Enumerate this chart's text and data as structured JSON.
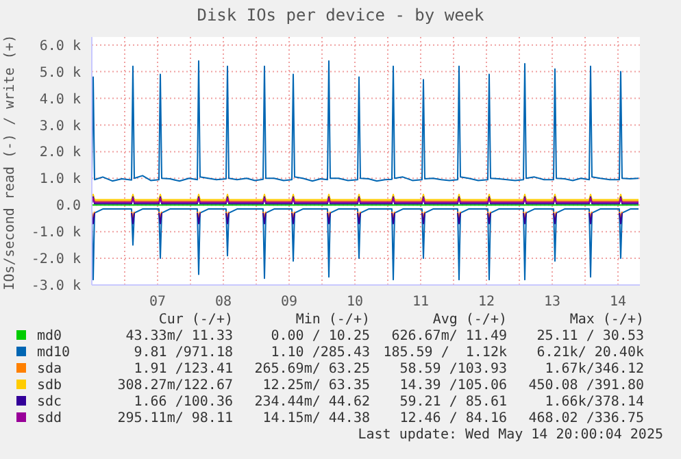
{
  "chart_data": {
    "type": "line",
    "title": "Disk IOs per device - by week",
    "ylabel": "IOs/second read (-) / write (+)",
    "x": [
      "2025-05-06T12:00",
      "2025-05-06T12:30",
      "2025-05-06T13:00",
      "2025-05-06T16:00",
      "2025-05-06T19:30",
      "2025-05-06T23:00",
      "2025-05-07T02:30",
      "2025-05-07T03:00",
      "2025-05-07T03:30",
      "2025-05-07T06:30",
      "2025-05-07T09:30",
      "2025-05-07T12:30",
      "2025-05-07T13:00",
      "2025-05-07T13:30",
      "2025-05-07T16:30",
      "2025-05-07T20:00",
      "2025-05-07T23:30",
      "2025-05-08T02:30",
      "2025-05-08T03:00",
      "2025-05-08T03:30",
      "2025-05-08T06:30",
      "2025-05-08T09:30",
      "2025-05-08T13:00",
      "2025-05-08T13:30",
      "2025-05-08T14:00",
      "2025-05-08T17:00",
      "2025-05-08T20:30",
      "2025-05-08T23:30",
      "2025-05-09T02:30",
      "2025-05-09T03:00",
      "2025-05-09T03:30",
      "2025-05-09T06:30",
      "2025-05-09T10:00",
      "2025-05-09T13:00",
      "2025-05-09T13:30",
      "2025-05-09T14:00",
      "2025-05-09T17:00",
      "2025-05-09T20:30",
      "2025-05-09T23:30",
      "2025-05-10T02:00",
      "2025-05-10T02:30",
      "2025-05-10T03:00",
      "2025-05-10T06:00",
      "2025-05-10T09:30",
      "2025-05-10T13:00",
      "2025-05-10T13:30",
      "2025-05-10T14:00",
      "2025-05-10T17:00",
      "2025-05-10T20:00",
      "2025-05-10T23:00",
      "2025-05-11T01:30",
      "2025-05-11T02:00",
      "2025-05-11T02:30",
      "2025-05-11T05:30",
      "2025-05-11T09:00",
      "2025-05-11T12:30",
      "2025-05-11T13:00",
      "2025-05-11T13:30",
      "2025-05-11T16:30",
      "2025-05-11T19:30",
      "2025-05-11T22:30",
      "2025-05-12T01:30",
      "2025-05-12T02:00",
      "2025-05-12T02:30",
      "2025-05-12T05:30",
      "2025-05-12T09:00",
      "2025-05-12T12:30",
      "2025-05-12T13:00",
      "2025-05-12T13:30",
      "2025-05-12T16:30",
      "2025-05-12T19:30",
      "2025-05-12T22:30",
      "2025-05-13T01:30",
      "2025-05-13T02:00",
      "2025-05-13T02:30",
      "2025-05-13T05:30",
      "2025-05-13T09:00",
      "2025-05-13T12:30",
      "2025-05-13T13:00",
      "2025-05-13T13:30",
      "2025-05-13T16:30",
      "2025-05-13T19:30",
      "2025-05-13T22:30",
      "2025-05-14T01:30",
      "2025-05-14T02:00",
      "2025-05-14T02:30",
      "2025-05-14T05:30",
      "2025-05-14T09:00",
      "2025-05-14T12:30",
      "2025-05-14T13:00",
      "2025-05-14T13:30",
      "2025-05-14T16:30",
      "2025-05-14T19:30"
    ],
    "series": [
      {
        "name": "md0",
        "color": "#00cc00",
        "values": [
          0,
          0,
          0,
          0,
          0,
          0,
          0,
          0,
          0,
          0,
          0,
          0,
          0,
          0,
          0,
          0,
          0,
          0,
          0,
          0,
          0,
          0,
          0,
          0,
          0,
          0,
          0,
          0,
          0,
          0,
          0,
          0,
          0,
          0,
          0,
          0,
          0,
          0,
          0,
          0,
          0,
          0,
          0,
          0,
          0,
          0,
          0,
          0,
          0,
          0,
          0,
          0,
          0,
          0,
          0,
          0,
          0,
          0,
          0,
          0,
          0,
          0,
          0,
          0,
          0,
          0,
          0,
          0,
          0,
          0,
          0,
          0,
          0,
          0,
          0,
          0,
          0,
          0,
          0,
          0,
          0,
          0,
          0,
          0,
          0,
          0,
          0,
          0,
          0,
          0,
          0,
          0,
          0
        ]
      },
      {
        "name": "md10",
        "color": "#0066b3",
        "values": [
          920,
          4800,
          950,
          1050,
          900,
          980,
          940,
          5200,
          1000,
          1100,
          920,
          950,
          4900,
          1000,
          980,
          900,
          1000,
          950,
          5400,
          1050,
          1000,
          950,
          980,
          5200,
          1000,
          950,
          1000,
          920,
          960,
          5200,
          1000,
          1000,
          920,
          950,
          4900,
          1050,
          1000,
          900,
          980,
          950,
          5400,
          1000,
          1000,
          920,
          950,
          4800,
          1000,
          980,
          900,
          950,
          960,
          5200,
          1000,
          1050,
          920,
          950,
          4700,
          980,
          1000,
          950,
          920,
          950,
          5200,
          1050,
          1000,
          920,
          950,
          4900,
          1000,
          980,
          950,
          920,
          950,
          5300,
          1000,
          1050,
          950,
          950,
          5100,
          1000,
          980,
          920,
          1000,
          950,
          5200,
          1050,
          1000,
          950,
          950,
          5000,
          1000,
          980,
          1000
        ]
      },
      {
        "color": "#0066b3",
        "values": [
          -150,
          -2800,
          -300,
          -150,
          -150,
          -150,
          -150,
          -1500,
          -300,
          -150,
          -150,
          -150,
          -2000,
          -300,
          -150,
          -150,
          -150,
          -150,
          -2600,
          -300,
          -150,
          -150,
          -150,
          -1900,
          -300,
          -150,
          -150,
          -150,
          -150,
          -2750,
          -300,
          -150,
          -150,
          -150,
          -2100,
          -300,
          -150,
          -150,
          -150,
          -150,
          -2700,
          -300,
          -150,
          -150,
          -150,
          -2000,
          -300,
          -150,
          -150,
          -150,
          -150,
          -2800,
          -300,
          -150,
          -150,
          -150,
          -2000,
          -300,
          -150,
          -150,
          -150,
          -150,
          -2800,
          -300,
          -150,
          -150,
          -150,
          -2800,
          -300,
          -150,
          -150,
          -150,
          -150,
          -2800,
          -300,
          -150,
          -150,
          -150,
          -2100,
          -300,
          -150,
          -150,
          -150,
          -150,
          -2700,
          -300,
          -150,
          -150,
          -150,
          -2000,
          -300,
          -150,
          -150
        ]
      },
      {
        "name": "sda",
        "color": "#ff8000",
        "values": [
          150,
          350,
          150,
          150,
          150,
          150,
          150,
          350,
          150,
          150,
          150,
          150,
          350,
          150,
          150,
          150,
          150,
          150,
          350,
          150,
          150,
          150,
          150,
          350,
          150,
          150,
          150,
          150,
          150,
          350,
          150,
          150,
          150,
          150,
          350,
          150,
          150,
          150,
          150,
          150,
          350,
          150,
          150,
          150,
          150,
          350,
          150,
          150,
          150,
          150,
          150,
          350,
          150,
          150,
          150,
          150,
          350,
          150,
          150,
          150,
          150,
          150,
          350,
          150,
          150,
          150,
          150,
          350,
          150,
          150,
          150,
          150,
          150,
          350,
          150,
          150,
          150,
          150,
          350,
          150,
          150,
          150,
          150,
          150,
          350,
          150,
          150,
          150,
          150,
          350,
          150,
          150,
          150
        ]
      },
      {
        "color": "#ff8000",
        "values": [
          -250,
          -500,
          -250,
          null,
          null,
          null,
          -250,
          -500,
          -250,
          null,
          null,
          -250,
          -500,
          -250,
          null,
          null,
          null,
          -250,
          -500,
          -250,
          null,
          null,
          -250,
          -500,
          -250,
          null,
          null,
          null,
          -250,
          -500,
          -250,
          null,
          null,
          -250,
          -500,
          -250,
          null,
          null,
          null,
          -250,
          -500,
          -250,
          null,
          null,
          -250,
          -500,
          -250,
          null,
          null,
          null,
          -250,
          -500,
          -250,
          null,
          null,
          -250,
          -500,
          -250,
          null,
          null,
          null,
          -250,
          -500,
          -250,
          null,
          null,
          -250,
          -500,
          -250,
          null,
          null,
          null,
          -250,
          -500,
          -250,
          null,
          null,
          -250,
          -500,
          -250,
          null,
          null,
          null,
          -250,
          -500,
          -250,
          null,
          null,
          -250,
          -500,
          -250,
          null,
          null
        ]
      },
      {
        "name": "sdb",
        "color": "#ffcc00",
        "values": [
          200,
          400,
          200,
          200,
          200,
          200,
          200,
          400,
          200,
          200,
          200,
          200,
          400,
          200,
          200,
          200,
          200,
          200,
          400,
          200,
          200,
          200,
          200,
          400,
          200,
          200,
          200,
          200,
          200,
          400,
          200,
          200,
          200,
          200,
          400,
          200,
          200,
          200,
          200,
          200,
          400,
          200,
          200,
          200,
          200,
          400,
          200,
          200,
          200,
          200,
          200,
          400,
          200,
          200,
          200,
          200,
          400,
          200,
          200,
          200,
          200,
          200,
          400,
          200,
          200,
          200,
          200,
          400,
          200,
          200,
          200,
          200,
          200,
          400,
          200,
          200,
          200,
          200,
          400,
          200,
          200,
          200,
          200,
          200,
          400,
          200,
          200,
          200,
          200,
          400,
          200,
          200,
          200
        ]
      },
      {
        "name": "sdc",
        "color": "#330099",
        "values": [
          50,
          300,
          50,
          50,
          50,
          50,
          50,
          300,
          50,
          50,
          50,
          50,
          300,
          50,
          50,
          50,
          50,
          50,
          300,
          50,
          50,
          50,
          50,
          300,
          50,
          50,
          50,
          50,
          50,
          300,
          50,
          50,
          50,
          50,
          300,
          50,
          50,
          50,
          50,
          50,
          300,
          50,
          50,
          50,
          50,
          300,
          50,
          50,
          50,
          50,
          50,
          300,
          50,
          50,
          50,
          50,
          300,
          50,
          50,
          50,
          50,
          50,
          300,
          50,
          50,
          50,
          50,
          300,
          50,
          50,
          50,
          50,
          50,
          300,
          50,
          50,
          50,
          50,
          300,
          50,
          50,
          50,
          50,
          50,
          300,
          50,
          50,
          50,
          50,
          300,
          50,
          50,
          50
        ]
      },
      {
        "color": "#330099",
        "values": [
          -300,
          -700,
          -300,
          null,
          null,
          null,
          -300,
          -700,
          -300,
          null,
          null,
          -300,
          -700,
          -300,
          null,
          null,
          null,
          -300,
          -700,
          -300,
          null,
          null,
          -300,
          -700,
          -300,
          null,
          null,
          null,
          -300,
          -700,
          -300,
          null,
          null,
          -300,
          -700,
          -300,
          null,
          null,
          null,
          -300,
          -700,
          -300,
          null,
          null,
          -300,
          -700,
          -300,
          null,
          null,
          null,
          -300,
          -700,
          -300,
          null,
          null,
          -300,
          -700,
          -300,
          null,
          null,
          null,
          -300,
          -700,
          -300,
          null,
          null,
          -300,
          -700,
          -300,
          null,
          null,
          null,
          -300,
          -700,
          -300,
          null,
          null,
          -300,
          -700,
          -300,
          null,
          null,
          null,
          -300,
          -700,
          -300,
          null,
          null,
          -300,
          -700,
          -300,
          null,
          null
        ]
      },
      {
        "name": "sdd",
        "color": "#990099",
        "values": [
          100,
          250,
          100,
          100,
          100,
          100,
          100,
          250,
          100,
          100,
          100,
          100,
          250,
          100,
          100,
          100,
          100,
          100,
          250,
          100,
          100,
          100,
          100,
          250,
          100,
          100,
          100,
          100,
          100,
          250,
          100,
          100,
          100,
          100,
          250,
          100,
          100,
          100,
          100,
          100,
          250,
          100,
          100,
          100,
          100,
          250,
          100,
          100,
          100,
          100,
          100,
          250,
          100,
          100,
          100,
          100,
          250,
          100,
          100,
          100,
          100,
          100,
          250,
          100,
          100,
          100,
          100,
          250,
          100,
          100,
          100,
          100,
          100,
          250,
          100,
          100,
          100,
          100,
          250,
          100,
          100,
          100,
          100,
          100,
          250,
          100,
          100,
          100,
          100,
          250,
          100,
          100,
          100
        ]
      }
    ],
    "xlim": [
      "2025-05-06T12:00",
      "2025-05-14T20:00"
    ],
    "xticks": [
      {
        "value": "2025-05-07T00:00",
        "label": null
      },
      {
        "value": "2025-05-07T12:00",
        "label": "07"
      },
      {
        "value": "2025-05-08T00:00",
        "label": null
      },
      {
        "value": "2025-05-08T12:00",
        "label": "08"
      },
      {
        "value": "2025-05-09T00:00",
        "label": null
      },
      {
        "value": "2025-05-09T12:00",
        "label": "09"
      },
      {
        "value": "2025-05-10T00:00",
        "label": null
      },
      {
        "value": "2025-05-10T12:00",
        "label": "10"
      },
      {
        "value": "2025-05-11T00:00",
        "label": null
      },
      {
        "value": "2025-05-11T12:00",
        "label": "11"
      },
      {
        "value": "2025-05-12T00:00",
        "label": null
      },
      {
        "value": "2025-05-12T12:00",
        "label": "12"
      },
      {
        "value": "2025-05-13T00:00",
        "label": null
      },
      {
        "value": "2025-05-13T12:00",
        "label": "13"
      },
      {
        "value": "2025-05-14T00:00",
        "label": null
      },
      {
        "value": "2025-05-14T12:00",
        "label": "14"
      }
    ],
    "ylim": [
      -3000,
      6300
    ],
    "yticks": [
      {
        "value": -3000,
        "label": "-3.0 k"
      },
      {
        "value": -2000,
        "label": "-2.0 k"
      },
      {
        "value": -1000,
        "label": "-1.0 k"
      },
      {
        "value": 0,
        "label": "0.0"
      },
      {
        "value": 1000,
        "label": "1.0 k"
      },
      {
        "value": 2000,
        "label": "2.0 k"
      },
      {
        "value": 3000,
        "label": "3.0 k"
      },
      {
        "value": 4000,
        "label": "4.0 k"
      },
      {
        "value": 5000,
        "label": "5.0 k"
      },
      {
        "value": 6000,
        "label": "6.0 k"
      }
    ],
    "grid": true,
    "legend": "bottom",
    "annotations": [
      "Cur (-/+)",
      "Min (-/+)",
      "Avg (-/+)",
      "Max (-/+)",
      "43.33m/ 11.33",
      "0.00 / 10.25",
      "626.67m/ 11.49",
      "25.11 / 30.53",
      "9.81 /971.18",
      "1.10 /285.43",
      "185.59 /  1.12k",
      "6.21k/ 20.40k",
      "1.91 /123.41",
      "265.69m/ 63.25",
      "58.59 /103.93",
      "1.67k/346.12",
      "308.27m/122.67",
      "12.25m/ 63.35",
      "14.39 /105.06",
      "450.08 /391.80",
      "1.66 /100.36",
      "234.44m/ 44.62",
      "59.21 / 85.61",
      "1.66k/378.14",
      "295.11m/ 98.11",
      "14.15m/ 44.38",
      "12.46 / 84.16",
      "468.02 /336.75",
      "Last update: Wed May 14 20:00:04 2025"
    ]
  }
}
